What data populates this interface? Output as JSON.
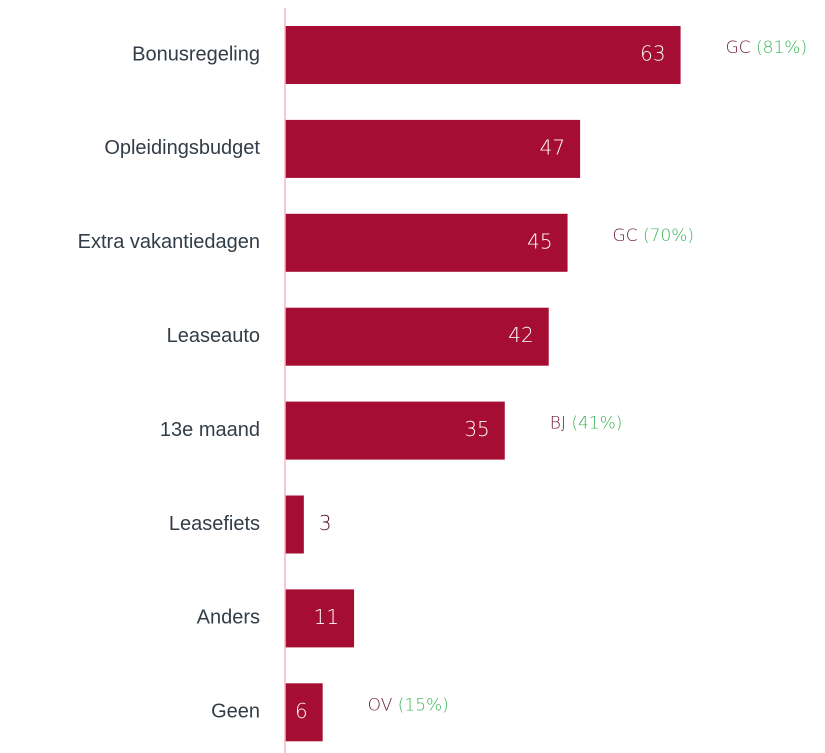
{
  "chart_data": {
    "type": "bar",
    "orientation": "horizontal",
    "categories": [
      "Bonusregeling",
      "Opleidingsbudget",
      "Extra vakantiedagen",
      "Leaseauto",
      "13e maand",
      "Leasefiets",
      "Anders",
      "Geen"
    ],
    "values": [
      63,
      47,
      45,
      42,
      35,
      3,
      11,
      6
    ],
    "color": "#a50d33",
    "xlim": [
      0,
      86
    ],
    "annotations": [
      {
        "code": "GC",
        "share": "(81%)"
      },
      null,
      {
        "code": "GC",
        "share": "(70%)"
      },
      null,
      {
        "code": "BJ",
        "share": "(41%)"
      },
      null,
      null,
      {
        "code": "OV",
        "share": "(15%)"
      }
    ],
    "annotation_colors": {
      "code": "#6b1a2e",
      "share": "#3cb55a"
    },
    "axis_color": "#f4b6c6"
  }
}
